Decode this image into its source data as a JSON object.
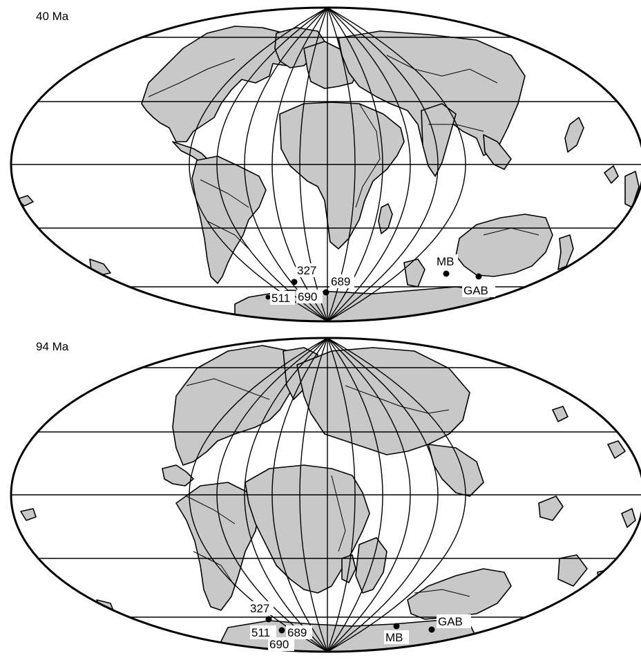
{
  "maps": [
    {
      "age_label": "40 Ma",
      "sites": [
        {
          "name": "327"
        },
        {
          "name": "511"
        },
        {
          "name": "690"
        },
        {
          "name": "689"
        },
        {
          "name": "MB"
        },
        {
          "name": "GAB"
        }
      ]
    },
    {
      "age_label": "94 Ma",
      "sites": [
        {
          "name": "327"
        },
        {
          "name": "511"
        },
        {
          "name": "689"
        },
        {
          "name": "690"
        },
        {
          "name": "MB"
        },
        {
          "name": "GAB"
        }
      ]
    }
  ],
  "colors": {
    "land": "#c8c8c8",
    "outline": "#000000",
    "ocean": "#ffffff"
  }
}
